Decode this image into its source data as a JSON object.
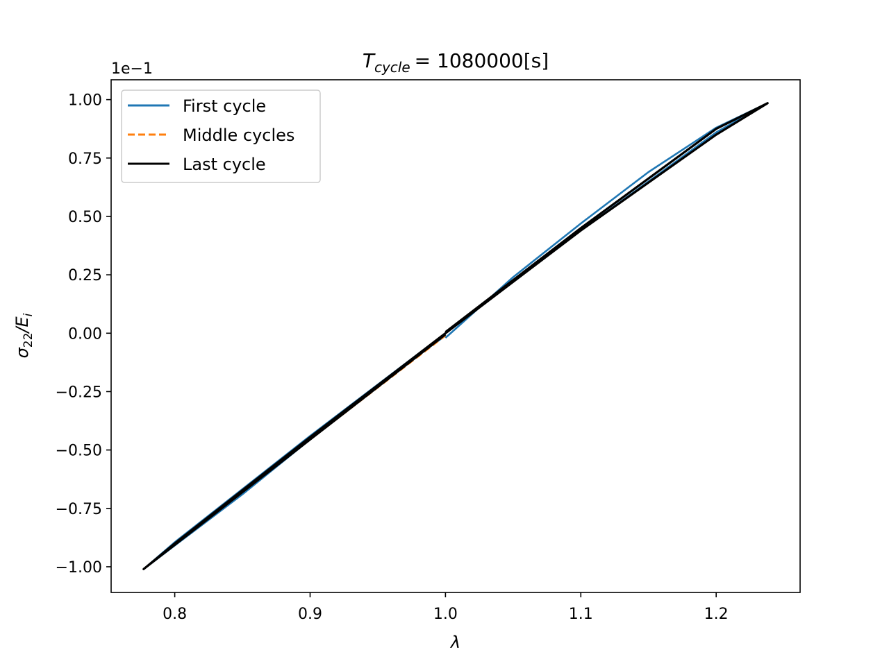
{
  "chart_data": {
    "type": "line",
    "title": {
      "base": "T",
      "sub": "cycle",
      "rest": "= 1080000[s]"
    },
    "xlabel": "λ",
    "ylabel": {
      "base": "σ",
      "sub": "22",
      "mid": "/E",
      "sub2": "i"
    },
    "y_offset_text": "1e−1",
    "xlim": [
      0.753,
      1.262
    ],
    "ylim": [
      -1.11,
      1.085
    ],
    "x_ticks": [
      0.8,
      0.9,
      1.0,
      1.1,
      1.2
    ],
    "x_tick_labels": [
      "0.8",
      "0.9",
      "1.0",
      "1.1",
      "1.2"
    ],
    "y_ticks": [
      1.0,
      0.75,
      0.5,
      0.25,
      0.0,
      -0.25,
      -0.5,
      -0.75,
      -1.0
    ],
    "y_tick_labels": [
      "1.00",
      "0.75",
      "0.50",
      "0.25",
      "0.00",
      "−0.25",
      "−0.50",
      "−0.75",
      "−1.00"
    ],
    "grid": false,
    "legend_position": "top-left",
    "series": [
      {
        "name": "First cycle",
        "color": "#1f77b4",
        "style": "solid",
        "x": [
          1.0,
          1.05,
          1.1,
          1.15,
          1.2,
          1.238,
          1.2,
          1.1,
          1.0,
          0.9,
          0.8,
          0.777,
          0.85,
          0.95,
          1.0
        ],
        "y": [
          -0.02,
          0.24,
          0.47,
          0.69,
          0.88,
          0.985,
          0.86,
          0.44,
          0.0,
          -0.44,
          -0.895,
          -1.01,
          -0.69,
          -0.22,
          -0.01
        ]
      },
      {
        "name": "Middle cycles",
        "color": "#ff7f0e",
        "style": "dashed",
        "x": [
          1.0,
          1.1,
          1.2,
          1.238,
          1.2,
          1.1,
          1.0,
          0.9,
          0.8,
          0.777,
          0.9,
          1.0
        ],
        "y": [
          0.0,
          0.45,
          0.875,
          0.985,
          0.85,
          0.44,
          0.0,
          -0.445,
          -0.9,
          -1.01,
          -0.455,
          -0.01
        ]
      },
      {
        "name": "Last cycle",
        "color": "#000000",
        "style": "solid",
        "x": [
          1.0,
          1.1,
          1.2,
          1.238,
          1.2,
          1.1,
          1.0,
          0.9,
          0.8,
          0.777,
          0.9,
          1.0
        ],
        "y": [
          0.005,
          0.45,
          0.875,
          0.985,
          0.85,
          0.44,
          0.0,
          -0.445,
          -0.9,
          -1.01,
          -0.455,
          -0.005
        ]
      }
    ]
  }
}
